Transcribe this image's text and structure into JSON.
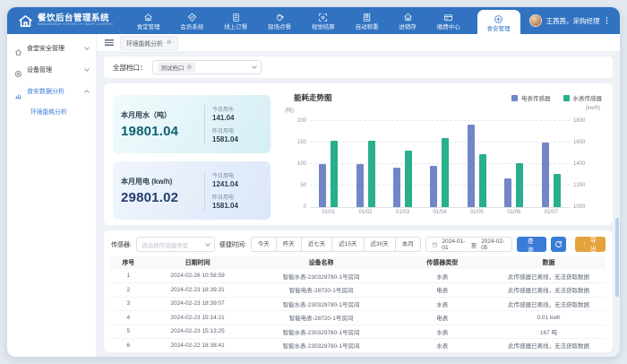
{
  "app": {
    "logo_title": "餐饮后台管理系统",
    "logo_subtitle": "MANAGEMENT SYSTEM OF SMART CANTEEN",
    "user_name": "王茜茜，采购经理"
  },
  "topnav": {
    "items": [
      {
        "label": "食堂管理",
        "icon": "canteen-home"
      },
      {
        "label": "会员系统",
        "icon": "member"
      },
      {
        "label": "线上订餐",
        "icon": "online-order"
      },
      {
        "label": "现场点餐",
        "icon": "onsite-order"
      },
      {
        "label": "视觉结算",
        "icon": "vision-checkout"
      },
      {
        "label": "自动称重",
        "icon": "auto-weigh"
      },
      {
        "label": "进销存",
        "icon": "inventory"
      },
      {
        "label": "缴费中心",
        "icon": "payment-center"
      }
    ],
    "active": {
      "label": "食安管理",
      "icon": "food-safety"
    }
  },
  "sidebar": {
    "items": [
      {
        "label": "食堂安全管理",
        "icon": "safety-home",
        "expanded": false,
        "active": false,
        "children": []
      },
      {
        "label": "设备管理",
        "icon": "device-monitor",
        "expanded": false,
        "active": false,
        "children": []
      },
      {
        "label": "食安数据分析",
        "icon": "data-analysis",
        "expanded": true,
        "active": true,
        "children": [
          {
            "label": "环境能耗分析",
            "active": true
          }
        ]
      }
    ]
  },
  "tabbar": {
    "tabs": [
      {
        "label": "环境能耗分析"
      }
    ]
  },
  "icons": {
    "close": "⊗",
    "export_arrow": "↑"
  },
  "stall_filter": {
    "label": "全部档口：",
    "tag": "测试档口"
  },
  "stats": {
    "water": {
      "title": "本月用水（吨）",
      "value": "19801.04",
      "items": [
        {
          "label": "今日用水",
          "value": "141.04"
        },
        {
          "label": "昨日用电",
          "value": "1581.04"
        }
      ]
    },
    "electric": {
      "title": "本月用电 (kw/h)",
      "value": "29801.02",
      "items": [
        {
          "label": "今日用电",
          "value": "1241.04"
        },
        {
          "label": "昨日用电",
          "value": "1581.04"
        }
      ]
    }
  },
  "chart_data": {
    "type": "bar",
    "title": "能耗走势图",
    "categories": [
      "01/01",
      "01/02",
      "01/03",
      "01/04",
      "01/05",
      "01/06",
      "01/07"
    ],
    "series": [
      {
        "name": "电表传感器",
        "color": "#7286c7",
        "axis": "right",
        "values": [
          1400,
          1400,
          1370,
          1380,
          1770,
          1270,
          1600
        ]
      },
      {
        "name": "水表传感器",
        "color": "#27b08b",
        "axis": "left",
        "values": [
          155,
          155,
          131,
          161,
          122,
          102,
          78
        ]
      }
    ],
    "left_axis": {
      "unit": "(吨)",
      "min": 0,
      "max": 200,
      "ticks": [
        0,
        50,
        100,
        150,
        200
      ]
    },
    "right_axis": {
      "unit": "(kw/h)",
      "min": 1000,
      "max": 1800,
      "ticks": [
        1000,
        1200,
        1400,
        1600,
        1800
      ]
    },
    "grid": true,
    "legend_position": "top-right"
  },
  "filters": {
    "sensor_label": "传感器:",
    "sensor_placeholder": "请选择传感器类型",
    "time_label": "便捷时间:",
    "quick_buttons": [
      "今天",
      "昨天",
      "近七天",
      "近15天",
      "近30天",
      "本月"
    ],
    "date_start": "2024-01-01",
    "date_separator": "至",
    "date_end": "2024-02-05",
    "search_label": "查询",
    "export_label": "导出"
  },
  "table": {
    "headers": [
      "序号",
      "日期时间",
      "设备名称",
      "传感器类型",
      "数据"
    ],
    "col_widths": [
      "7%",
      "21%",
      "29%",
      "20%",
      "23%"
    ],
    "rows": [
      [
        "1",
        "2024-02-26 10:58:59",
        "智能水表-230329780-1号房间",
        "水表",
        "此传感器已离线，无法获取数据"
      ],
      [
        "2",
        "2024-02-23 18:39:31",
        "智能电表-28720-1号房间",
        "电表",
        "此传感器已离线，无法获取数据"
      ],
      [
        "3",
        "2024-02-23 18:39:07",
        "智能水表-230329780-1号房间",
        "水表",
        "此传感器已离线，无法获取数据"
      ],
      [
        "4",
        "2024-02-23 15:14:21",
        "智能电表-28720-1号房间",
        "电表",
        "0.01 kwh"
      ],
      [
        "5",
        "2024-02-23 15:13:25",
        "智能水表-230329780-1号房间",
        "水表",
        "167 吨"
      ],
      [
        "6",
        "2024-02-22 18:38:41",
        "智能水表-230329780-1号房间",
        "水表",
        "此传感器已离线，无法获取数据"
      ]
    ]
  },
  "colors": {
    "topbar": "#3173c1",
    "accent": "#3a7bd5",
    "bar_blue": "#7286c7",
    "bar_green": "#27b08b",
    "export_orange": "#e6a23c",
    "water_value": "#0c6170",
    "electric_value": "#243d6d"
  }
}
